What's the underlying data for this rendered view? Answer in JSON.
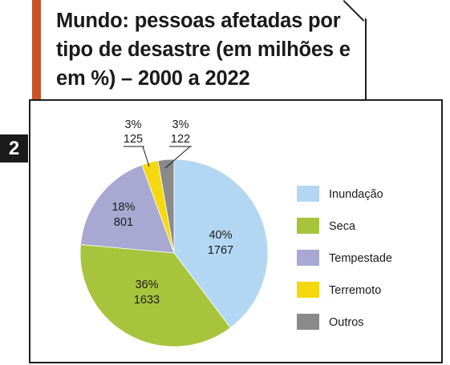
{
  "title": "Mundo: pessoas afetadas por tipo de desastre (em milhões e em %) – 2000 a 2022",
  "figure_number": "2",
  "chart_data": {
    "type": "pie",
    "title": "Mundo: pessoas afetadas por tipo de desastre (em milhões e em %) – 2000 a 2022",
    "series": [
      {
        "name": "Inundação",
        "percent": "40%",
        "value": 1767,
        "color": "#b3d7f3"
      },
      {
        "name": "Seca",
        "percent": "36%",
        "value": 1633,
        "color": "#a8c43c"
      },
      {
        "name": "Tempestade",
        "percent": "18%",
        "value": 801,
        "color": "#a9a8d2"
      },
      {
        "name": "Terremoto",
        "percent": "3%",
        "value": 125,
        "color": "#f5d80f"
      },
      {
        "name": "Outros",
        "percent": "3%",
        "value": 122,
        "color": "#8a8a8a"
      }
    ],
    "legend_position": "right"
  }
}
